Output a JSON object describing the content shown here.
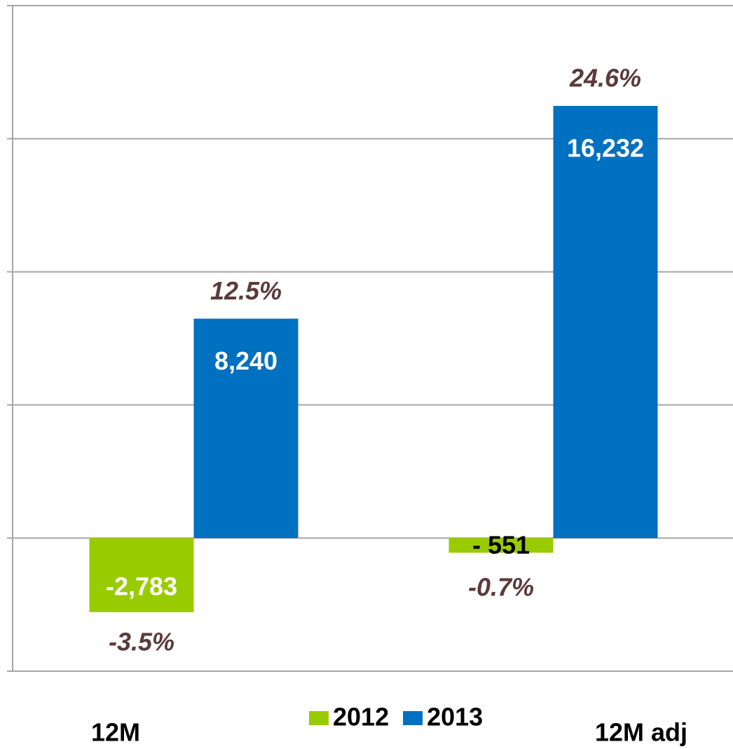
{
  "chart_data": {
    "type": "bar",
    "categories": [
      "12M",
      "12M adj"
    ],
    "series": [
      {
        "name": "2012",
        "color": "#99cc00",
        "values": [
          -2783,
          -551
        ],
        "value_labels": [
          "-2,783",
          "- 551"
        ],
        "percent_labels": [
          "-3.5%",
          "-0.7%"
        ]
      },
      {
        "name": "2013",
        "color": "#0070c0",
        "values": [
          8240,
          16232
        ],
        "value_labels": [
          "8,240",
          "16,232"
        ],
        "percent_labels": [
          "12.5%",
          "24.6%"
        ]
      }
    ],
    "ylim": [
      -5000,
      20000
    ],
    "yticks": [
      -5000,
      0,
      5000,
      10000,
      15000,
      20000
    ],
    "grid": true
  }
}
